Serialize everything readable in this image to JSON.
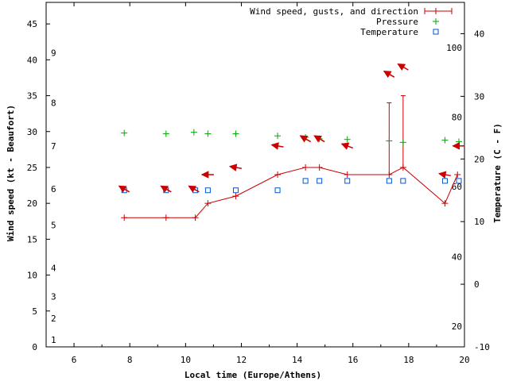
{
  "chart_data": {
    "type": "line",
    "xlabel": "Local time (Europe/Athens)",
    "ylabel": "Wind speed (kt - Beaufort)",
    "y2label": "Temperature (C - F)",
    "xlim": [
      5,
      20
    ],
    "ylim": [
      0,
      48
    ],
    "y2lim": [
      -10,
      45
    ],
    "x_ticks": [
      6,
      8,
      10,
      12,
      14,
      16,
      18,
      20
    ],
    "y_ticks": [
      0,
      5,
      10,
      15,
      20,
      25,
      30,
      35,
      40,
      45
    ],
    "y2_ticks": [
      -10,
      0,
      10,
      20,
      30,
      40
    ],
    "beaufort_labels": [
      {
        "label": "1",
        "kt": 1
      },
      {
        "label": "2",
        "kt": 4
      },
      {
        "label": "3",
        "kt": 7
      },
      {
        "label": "4",
        "kt": 11
      },
      {
        "label": "5",
        "kt": 17
      },
      {
        "label": "6",
        "kt": 22
      },
      {
        "label": "7",
        "kt": 28
      },
      {
        "label": "8",
        "kt": 34
      },
      {
        "label": "9",
        "kt": 41
      }
    ],
    "fahrenheit_labels": [
      {
        "label": "20",
        "c": -6.7
      },
      {
        "label": "40",
        "c": 4.4
      },
      {
        "label": "60",
        "c": 15.6
      },
      {
        "label": "80",
        "c": 26.7
      },
      {
        "label": "100",
        "c": 37.8
      }
    ],
    "legend": {
      "position": "top-right",
      "entries": [
        {
          "label": "Wind speed, gusts, and direction",
          "color": "#cc0000"
        },
        {
          "label": "Pressure",
          "color": "#00aa00"
        },
        {
          "label": "Temperature",
          "color": "#0055cc"
        }
      ]
    },
    "series": [
      {
        "name": "Wind speed, gusts, and direction",
        "color": "#cc0000",
        "x": [
          7.8,
          9.3,
          10.35,
          10.8,
          11.8,
          13.3,
          14.3,
          14.8,
          15.8,
          17.3,
          17.8,
          19.3,
          19.75
        ],
        "values": [
          18,
          18,
          18,
          20,
          21,
          24,
          25,
          25,
          24,
          24,
          25,
          20,
          24
        ],
        "gusts": [
          null,
          null,
          null,
          null,
          null,
          null,
          null,
          null,
          null,
          34,
          35,
          null,
          null
        ]
      },
      {
        "name": "Pressure",
        "color": "#00aa00",
        "x": [
          7.8,
          9.3,
          10.3,
          10.8,
          11.8,
          13.3,
          14.3,
          14.8,
          15.8,
          17.3,
          17.8,
          19.3,
          19.8
        ],
        "values": [
          29.8,
          29.7,
          29.9,
          29.7,
          29.7,
          29.4,
          29.2,
          29.0,
          28.9,
          28.7,
          28.5,
          28.8,
          28.6
        ]
      },
      {
        "name": "Temperature",
        "color": "#0055cc",
        "x": [
          7.8,
          9.3,
          10.35,
          10.8,
          11.8,
          13.3,
          14.3,
          14.8,
          15.8,
          17.3,
          17.8,
          19.3,
          19.8
        ],
        "values": [
          15,
          15,
          15,
          15,
          15,
          15,
          16.5,
          16.5,
          16.5,
          16.5,
          16.5,
          16.5,
          16.5
        ]
      }
    ],
    "wind_direction_arrows": {
      "color": "#cc0000",
      "x": [
        7.8,
        9.3,
        10.3,
        10.8,
        11.8,
        13.3,
        14.3,
        14.8,
        15.8,
        17.3,
        17.8,
        19.3,
        19.8
      ],
      "y": [
        22,
        22,
        22,
        24,
        25,
        28,
        29,
        29,
        28,
        38,
        39,
        24,
        28
      ],
      "points_to_deg": [
        300,
        300,
        300,
        270,
        280,
        280,
        300,
        300,
        290,
        300,
        300,
        280,
        270
      ]
    }
  }
}
